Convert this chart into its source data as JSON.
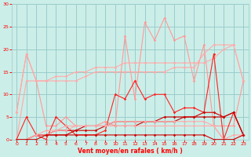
{
  "x": [
    0,
    1,
    2,
    3,
    4,
    5,
    6,
    7,
    8,
    9,
    10,
    11,
    12,
    13,
    14,
    15,
    16,
    17,
    18,
    19,
    20,
    21,
    22,
    23
  ],
  "series": [
    {
      "name": "top_zigzag_light",
      "color": "#ff9999",
      "lw": 0.8,
      "marker": "D",
      "ms": 1.8,
      "y": [
        6,
        19,
        13,
        3,
        3,
        5,
        3,
        3,
        3,
        4,
        3,
        23,
        9,
        26,
        22,
        27,
        22,
        23,
        13,
        21,
        3,
        3,
        3,
        13
      ]
    },
    {
      "name": "upper_trend1",
      "color": "#ffaaaa",
      "lw": 0.8,
      "marker": "D",
      "ms": 1.8,
      "y": [
        6,
        19,
        13,
        13,
        13,
        13,
        13,
        14,
        15,
        15,
        15,
        15,
        15,
        15,
        15,
        15,
        16,
        16,
        16,
        19,
        21,
        21,
        21,
        13
      ]
    },
    {
      "name": "upper_trend2",
      "color": "#ffaaaa",
      "lw": 0.8,
      "marker": "D",
      "ms": 1.8,
      "y": [
        0,
        13,
        13,
        13,
        14,
        14,
        15,
        15,
        16,
        16,
        16,
        17,
        17,
        17,
        17,
        17,
        17,
        17,
        17,
        17,
        18,
        20,
        21,
        13
      ]
    },
    {
      "name": "mid_zigzag_dark",
      "color": "#ff2222",
      "lw": 0.8,
      "marker": "D",
      "ms": 1.8,
      "y": [
        0,
        5,
        1,
        0,
        5,
        3,
        1,
        1,
        1,
        2,
        10,
        9,
        13,
        9,
        10,
        10,
        6,
        7,
        7,
        6,
        19,
        0,
        6,
        1
      ]
    },
    {
      "name": "lower_trend_dark1",
      "color": "#cc0000",
      "lw": 0.8,
      "marker": "D",
      "ms": 1.8,
      "y": [
        0,
        0,
        1,
        1,
        1,
        1,
        2,
        2,
        2,
        3,
        3,
        3,
        3,
        4,
        4,
        4,
        4,
        5,
        5,
        5,
        5,
        5,
        6,
        1
      ]
    },
    {
      "name": "lower_trend_dark2",
      "color": "#cc0000",
      "lw": 0.8,
      "marker": "D",
      "ms": 1.8,
      "y": [
        0,
        0,
        1,
        1,
        2,
        2,
        2,
        3,
        3,
        3,
        4,
        4,
        4,
        4,
        4,
        5,
        5,
        5,
        5,
        6,
        6,
        5,
        6,
        1
      ]
    },
    {
      "name": "near_zero_light1",
      "color": "#ffaaaa",
      "lw": 0.8,
      "marker": "D",
      "ms": 1.8,
      "y": [
        0,
        0,
        1,
        1,
        2,
        2,
        3,
        3,
        3,
        3,
        3,
        3,
        3,
        3,
        3,
        3,
        3,
        3,
        3,
        3,
        3,
        0,
        1,
        1
      ]
    },
    {
      "name": "near_zero_light2",
      "color": "#ffaaaa",
      "lw": 0.8,
      "marker": "D",
      "ms": 1.8,
      "y": [
        0,
        0,
        1,
        2,
        2,
        3,
        3,
        3,
        3,
        3,
        4,
        4,
        4,
        4,
        4,
        4,
        4,
        4,
        4,
        4,
        3,
        0,
        0,
        1
      ]
    },
    {
      "name": "flat_zero_dark",
      "color": "#cc0000",
      "lw": 0.8,
      "marker": "D",
      "ms": 1.8,
      "y": [
        0,
        0,
        0,
        1,
        1,
        1,
        1,
        1,
        1,
        1,
        1,
        1,
        1,
        1,
        1,
        1,
        1,
        1,
        1,
        1,
        0,
        0,
        0,
        1
      ]
    }
  ],
  "xlim": [
    -0.5,
    23.5
  ],
  "ylim": [
    0,
    30
  ],
  "yticks": [
    0,
    5,
    10,
    15,
    20,
    25,
    30
  ],
  "xticks": [
    0,
    1,
    2,
    3,
    4,
    5,
    6,
    7,
    8,
    9,
    10,
    11,
    12,
    13,
    14,
    15,
    16,
    17,
    18,
    19,
    20,
    21,
    22,
    23
  ],
  "xlabel": "Vent moyen/en rafales ( km/h )",
  "bg_color": "#cceee8",
  "grid_color": "#99cccc",
  "tick_color": "#ff0000",
  "label_color": "#ff0000"
}
